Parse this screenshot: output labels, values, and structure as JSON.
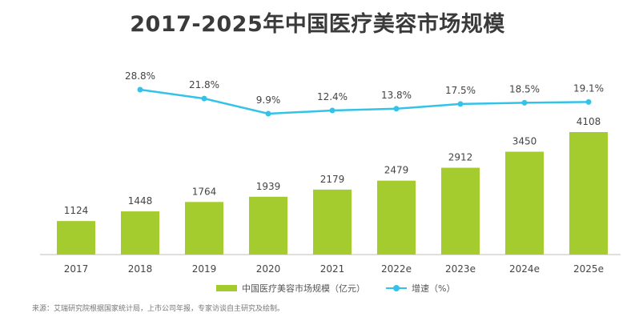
{
  "title": "2017-2025年中国医疗美容市场规模",
  "source": "来源：艾瑞研究院根据国家统计局，上市公司年报，专家访谈自主研究及绘制。",
  "colors": {
    "bar": "#a4cc2f",
    "line": "#34c3e8",
    "axis": "#bfbfbf"
  },
  "legend": {
    "bar_label": "中国医疗美容市场规模（亿元）",
    "line_label": "增速（%）"
  },
  "chart_data": {
    "type": "bar",
    "title": "2017-2025年中国医疗美容市场规模",
    "categories": [
      "2017",
      "2018",
      "2019",
      "2020",
      "2021",
      "2022e",
      "2023e",
      "2024e",
      "2025e"
    ],
    "series": [
      {
        "name": "中国医疗美容市场规模（亿元）",
        "type": "bar",
        "values": [
          1124,
          1448,
          1764,
          1939,
          2179,
          2479,
          2912,
          3450,
          4108
        ],
        "labels": [
          "1124",
          "1448",
          "1764",
          "1939",
          "2179",
          "2479",
          "2912",
          "3450",
          "4108"
        ]
      },
      {
        "name": "增速（%）",
        "type": "line",
        "values": [
          null,
          28.8,
          21.8,
          9.9,
          12.4,
          13.8,
          17.5,
          18.5,
          19.1
        ],
        "labels": [
          "",
          "28.8%",
          "21.8%",
          "9.9%",
          "12.4%",
          "13.8%",
          "17.5%",
          "18.5%",
          "19.1%"
        ]
      }
    ],
    "legend_position": "bottom",
    "grid": false
  }
}
